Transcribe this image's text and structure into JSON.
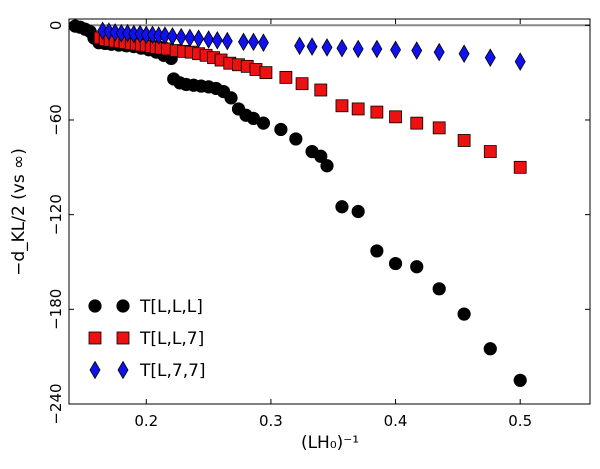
{
  "chart_data": {
    "type": "scatter",
    "title": "",
    "xlabel": "(LH₀)⁻¹",
    "ylabel": "−d_KL/2 (vs ∞)",
    "xlim": [
      0.138,
      0.556
    ],
    "ylim": [
      -240,
      4
    ],
    "xticks": [
      0.2,
      0.3,
      0.4,
      0.5
    ],
    "yticks": [
      0,
      -60,
      -120,
      -180,
      -240
    ],
    "xtick_labels": [
      "0.2",
      "0.3",
      "0.4",
      "0.5"
    ],
    "ytick_labels": [
      "0",
      "−60",
      "−120",
      "−180",
      "−240"
    ],
    "reference_line_y": 0,
    "legend_position": "lower-left",
    "series": [
      {
        "name": "T[L,L,L]",
        "marker": "circle",
        "color": "#000000",
        "points": [
          [
            0.143,
            -0.5
          ],
          [
            0.147,
            -1.2
          ],
          [
            0.151,
            -2.5
          ],
          [
            0.155,
            -4
          ],
          [
            0.158,
            -8
          ],
          [
            0.162,
            -11
          ],
          [
            0.167,
            -11.5
          ],
          [
            0.172,
            -12
          ],
          [
            0.178,
            -12.5
          ],
          [
            0.184,
            -13
          ],
          [
            0.19,
            -13.5
          ],
          [
            0.196,
            -14.5
          ],
          [
            0.202,
            -15.5
          ],
          [
            0.208,
            -17
          ],
          [
            0.214,
            -19
          ],
          [
            0.22,
            -21
          ],
          [
            0.222,
            -34
          ],
          [
            0.227,
            -36.5
          ],
          [
            0.232,
            -37.5
          ],
          [
            0.238,
            -38
          ],
          [
            0.244,
            -38.5
          ],
          [
            0.25,
            -39
          ],
          [
            0.256,
            -40
          ],
          [
            0.262,
            -42
          ],
          [
            0.268,
            -46
          ],
          [
            0.274,
            -53
          ],
          [
            0.28,
            -57
          ],
          [
            0.286,
            -59
          ],
          [
            0.294,
            -62
          ],
          [
            0.308,
            -66
          ],
          [
            0.32,
            -72
          ],
          [
            0.333,
            -80
          ],
          [
            0.34,
            -83
          ],
          [
            0.345,
            -89
          ],
          [
            0.357,
            -115
          ],
          [
            0.37,
            -118
          ],
          [
            0.385,
            -143
          ],
          [
            0.4,
            -151
          ],
          [
            0.417,
            -153
          ],
          [
            0.435,
            -167
          ],
          [
            0.455,
            -183
          ],
          [
            0.476,
            -205
          ],
          [
            0.5,
            -225
          ]
        ]
      },
      {
        "name": "T[L,L,7]",
        "marker": "square",
        "color": "#ee1111",
        "points": [
          [
            0.163,
            -8
          ],
          [
            0.167,
            -9
          ],
          [
            0.171,
            -9.5
          ],
          [
            0.175,
            -10
          ],
          [
            0.179,
            -10.5
          ],
          [
            0.183,
            -11
          ],
          [
            0.188,
            -11.5
          ],
          [
            0.192,
            -12
          ],
          [
            0.196,
            -12.5
          ],
          [
            0.2,
            -13
          ],
          [
            0.204,
            -13.5
          ],
          [
            0.208,
            -14
          ],
          [
            0.212,
            -14.5
          ],
          [
            0.217,
            -15
          ],
          [
            0.224,
            -16
          ],
          [
            0.23,
            -16.5
          ],
          [
            0.236,
            -17
          ],
          [
            0.242,
            -18
          ],
          [
            0.248,
            -19
          ],
          [
            0.254,
            -20.5
          ],
          [
            0.26,
            -22
          ],
          [
            0.267,
            -24
          ],
          [
            0.274,
            -25
          ],
          [
            0.281,
            -26
          ],
          [
            0.288,
            -28
          ],
          [
            0.296,
            -30
          ],
          [
            0.312,
            -33
          ],
          [
            0.325,
            -37
          ],
          [
            0.34,
            -41
          ],
          [
            0.357,
            -51
          ],
          [
            0.37,
            -53
          ],
          [
            0.385,
            -55
          ],
          [
            0.4,
            -58
          ],
          [
            0.417,
            -62
          ],
          [
            0.435,
            -65
          ],
          [
            0.455,
            -73
          ],
          [
            0.476,
            -80
          ],
          [
            0.5,
            -90
          ]
        ]
      },
      {
        "name": "T[L,7,7]",
        "marker": "diamond",
        "color": "#1111ee",
        "points": [
          [
            0.165,
            -3.5
          ],
          [
            0.17,
            -4
          ],
          [
            0.175,
            -4.5
          ],
          [
            0.18,
            -5
          ],
          [
            0.185,
            -5
          ],
          [
            0.19,
            -5.5
          ],
          [
            0.195,
            -5.5
          ],
          [
            0.2,
            -6
          ],
          [
            0.205,
            -6
          ],
          [
            0.21,
            -6.5
          ],
          [
            0.215,
            -6.5
          ],
          [
            0.221,
            -7
          ],
          [
            0.228,
            -7.5
          ],
          [
            0.235,
            -8
          ],
          [
            0.242,
            -8.5
          ],
          [
            0.25,
            -9
          ],
          [
            0.257,
            -9.5
          ],
          [
            0.265,
            -10
          ],
          [
            0.278,
            -10.5
          ],
          [
            0.286,
            -10.5
          ],
          [
            0.294,
            -11
          ],
          [
            0.323,
            -13
          ],
          [
            0.333,
            -13.5
          ],
          [
            0.345,
            -14
          ],
          [
            0.357,
            -14.5
          ],
          [
            0.37,
            -15
          ],
          [
            0.385,
            -15
          ],
          [
            0.4,
            -15.5
          ],
          [
            0.417,
            -16
          ],
          [
            0.435,
            -17
          ],
          [
            0.455,
            -18
          ],
          [
            0.476,
            -20.5
          ],
          [
            0.5,
            -23
          ]
        ]
      }
    ]
  }
}
